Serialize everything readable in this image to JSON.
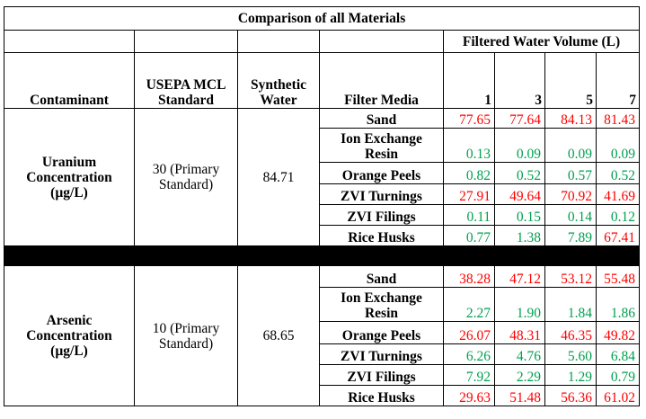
{
  "title": "Comparison of all Materials",
  "volume_header": "Filtered Water Volume (L)",
  "headers": {
    "contaminant": "Contaminant",
    "mcl": "USEPA MCL Standard",
    "synthetic": "Synthetic Water",
    "media": "Filter Media",
    "volumes": [
      "1",
      "3",
      "5",
      "7"
    ]
  },
  "sections": [
    {
      "contaminant": "Uranium Concentration (µg/L)",
      "mcl": "30 (Primary Standard)",
      "synthetic": "84.71",
      "rows": [
        {
          "media": "Sand",
          "values": [
            "77.65",
            "77.64",
            "84.13",
            "81.43"
          ],
          "colors": [
            "red",
            "red",
            "red",
            "red"
          ]
        },
        {
          "media": "Ion Exchange Resin",
          "values": [
            "0.13",
            "0.09",
            "0.09",
            "0.09"
          ],
          "colors": [
            "green",
            "green",
            "green",
            "green"
          ]
        },
        {
          "media": "Orange Peels",
          "values": [
            "0.82",
            "0.52",
            "0.57",
            "0.52"
          ],
          "colors": [
            "green",
            "green",
            "green",
            "green"
          ]
        },
        {
          "media": "ZVI Turnings",
          "values": [
            "27.91",
            "49.64",
            "70.92",
            "41.69"
          ],
          "colors": [
            "red",
            "red",
            "red",
            "red"
          ]
        },
        {
          "media": "ZVI Filings",
          "values": [
            "0.11",
            "0.15",
            "0.14",
            "0.12"
          ],
          "colors": [
            "green",
            "green",
            "green",
            "green"
          ]
        },
        {
          "media": "Rice Husks",
          "values": [
            "0.77",
            "1.38",
            "7.89",
            "67.41"
          ],
          "colors": [
            "green",
            "green",
            "green",
            "red"
          ]
        }
      ]
    },
    {
      "contaminant": "Arsenic Concentration (µg/L)",
      "mcl": "10 (Primary Standard)",
      "synthetic": "68.65",
      "rows": [
        {
          "media": "Sand",
          "values": [
            "38.28",
            "47.12",
            "53.12",
            "55.48"
          ],
          "colors": [
            "red",
            "red",
            "red",
            "red"
          ]
        },
        {
          "media": "Ion Exchange Resin",
          "values": [
            "2.27",
            "1.90",
            "1.84",
            "1.86"
          ],
          "colors": [
            "green",
            "green",
            "green",
            "green"
          ]
        },
        {
          "media": "Orange Peels",
          "values": [
            "26.07",
            "48.31",
            "46.35",
            "49.82"
          ],
          "colors": [
            "red",
            "red",
            "red",
            "red"
          ]
        },
        {
          "media": "ZVI Turnings",
          "values": [
            "6.26",
            "4.76",
            "5.60",
            "6.84"
          ],
          "colors": [
            "green",
            "green",
            "green",
            "green"
          ]
        },
        {
          "media": "ZVI Filings",
          "values": [
            "7.92",
            "2.29",
            "1.29",
            "0.79"
          ],
          "colors": [
            "green",
            "green",
            "green",
            "green"
          ]
        },
        {
          "media": "Rice Husks",
          "values": [
            "29.63",
            "51.48",
            "56.36",
            "61.02"
          ],
          "colors": [
            "red",
            "red",
            "red",
            "red"
          ]
        }
      ]
    }
  ],
  "colors": {
    "exceeds": "#ff0000",
    "meets": "#00a050",
    "divider": "#000000"
  }
}
